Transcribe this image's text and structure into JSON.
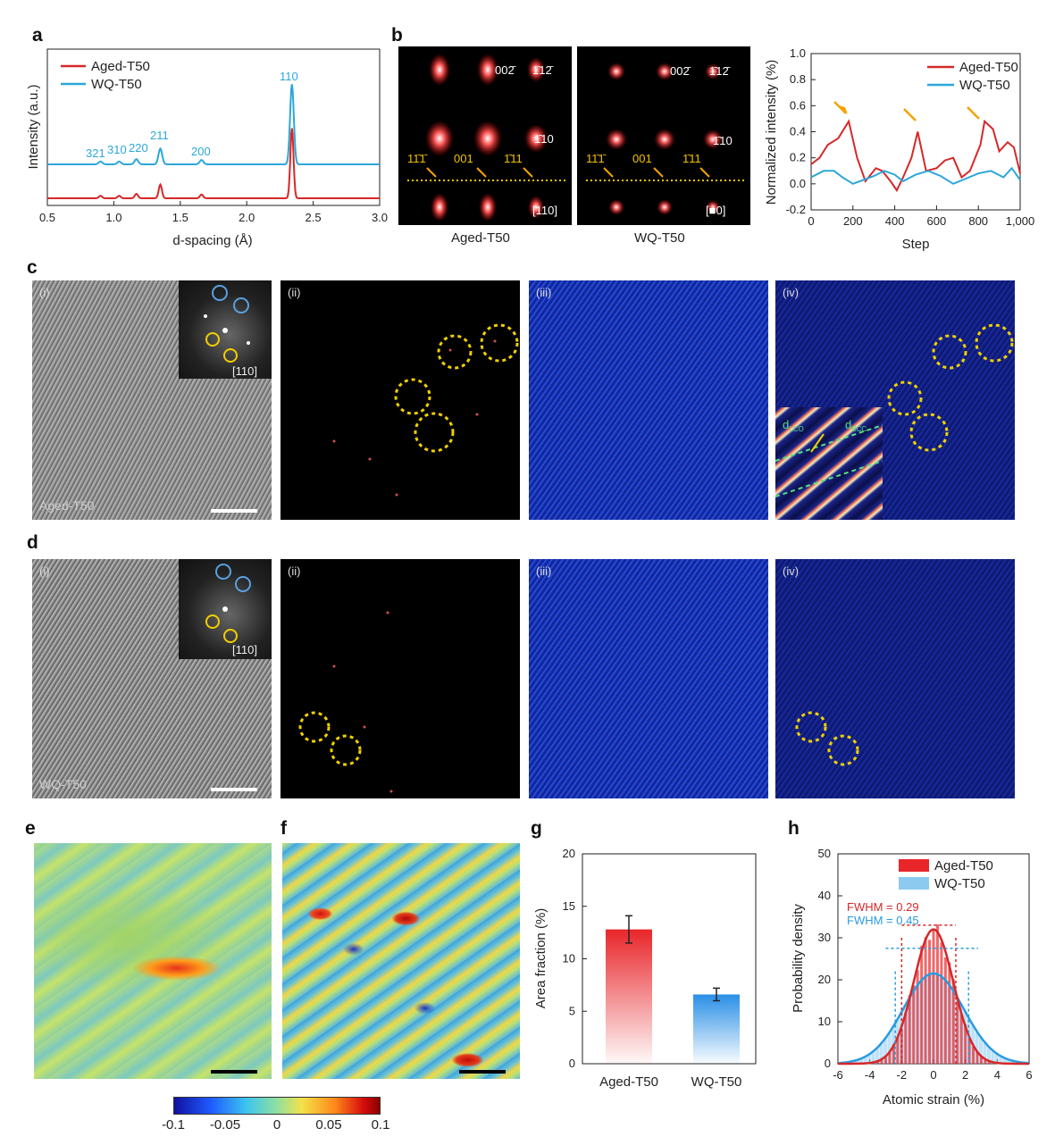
{
  "panels": {
    "a": "a",
    "b": "b",
    "c": "c",
    "d": "d",
    "e": "e",
    "f": "f",
    "g": "g",
    "h": "h"
  },
  "panel_a": {
    "xlabel": "d-spacing (Å)",
    "ylabel": "Intensity (a.u.)",
    "legend": [
      "Aged-T50",
      "WQ-T50"
    ],
    "xticks": [
      "0.5",
      "1.0",
      "1.5",
      "2.0",
      "2.5",
      "3.0"
    ],
    "peaks": [
      "321",
      "310",
      "220",
      "211",
      "200",
      "110"
    ]
  },
  "panel_b": {
    "captions": [
      "Aged-T50",
      "WQ-T50"
    ],
    "spot_labels": [
      "00̂2",
      "̄1̄12",
      "̄1̄10",
      "1̄1̄1",
      "001",
      "̄11"
    ],
    "spots": {
      "s002": "002̄",
      "s112": "1̄12̄",
      "s110": "1̄10",
      "s111a": "11̄1̄",
      "s001": "001",
      "s111b": "1̄11"
    },
    "zone": "[110]",
    "zone2": "[■0]"
  },
  "panel_b_chart": {
    "xlabel": "Step",
    "ylabel": "Normalized intensity (%)",
    "xticks": [
      "0",
      "200",
      "400",
      "600",
      "800",
      "1,000"
    ],
    "yticks": [
      "-0.2",
      "0.0",
      "0.2",
      "0.4",
      "0.6",
      "0.8",
      "1.0"
    ],
    "legend": [
      "Aged-T50",
      "WQ-T50"
    ]
  },
  "panel_c": {
    "sublabels": [
      "(i)",
      "(ii)",
      "(iii)",
      "(iv)"
    ],
    "sample": "Aged-T50",
    "zone": "[110]",
    "d1": "d",
    "d1sub": "LCO",
    "d2": "d",
    "d2sub": "BCC"
  },
  "panel_d": {
    "sublabels": [
      "(i)",
      "(ii)",
      "(iii)",
      "(iv)"
    ],
    "sample": "WQ-T50",
    "zone": "[110]"
  },
  "colorbar": {
    "ticks": [
      "-0.1",
      "-0.05",
      "0",
      "0.05",
      "0.1"
    ]
  },
  "chart_data": [
    {
      "type": "bar",
      "title": "",
      "categories": [
        "Aged-T50",
        "WQ-T50"
      ],
      "values": [
        12.8,
        6.6
      ],
      "errors": [
        1.3,
        0.6
      ],
      "ylabel": "Area fraction (%)",
      "ylim": [
        0,
        20
      ],
      "yticks": [
        "0",
        "5",
        "10",
        "15",
        "20"
      ],
      "colors": [
        "#e8262a",
        "#2a8fe6"
      ]
    },
    {
      "type": "bar",
      "title": "",
      "xlabel": "Atomic strain (%)",
      "ylabel": "Probability density",
      "xlim": [
        -6,
        6
      ],
      "ylim": [
        0,
        50
      ],
      "xticks": [
        "-6",
        "-4",
        "-2",
        "0",
        "2",
        "4",
        "6"
      ],
      "yticks": [
        "0",
        "10",
        "20",
        "30",
        "40",
        "50"
      ],
      "series": [
        {
          "name": "Aged-T50",
          "fwhm_label": "FWHM = 0.29",
          "peak": 32,
          "sigma": 1.25,
          "color": "#e8262a"
        },
        {
          "name": "WQ-T50",
          "fwhm_label": "FWHM = 0.45",
          "peak": 21.5,
          "sigma": 1.9,
          "color": "#2a9be0"
        }
      ]
    }
  ]
}
